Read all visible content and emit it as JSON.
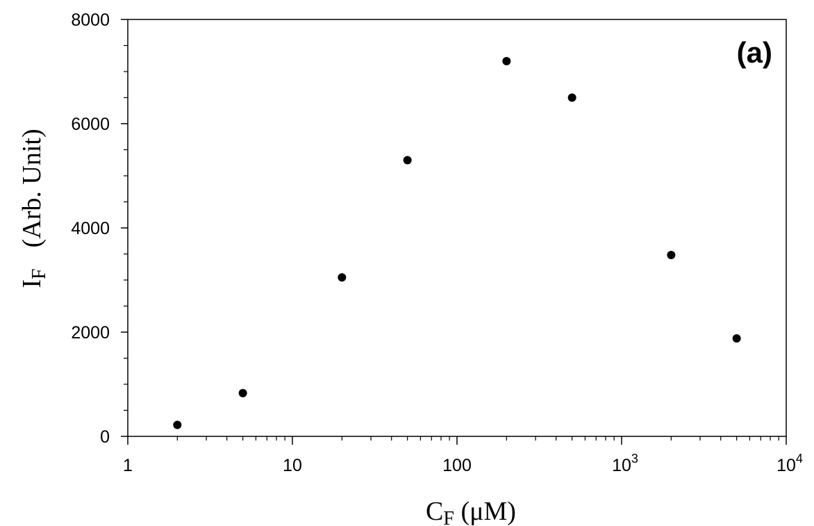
{
  "chart_data": {
    "type": "scatter",
    "panel_label": "(a)",
    "xlabel": {
      "main": "C",
      "sub": "F",
      "rest": " (μM)"
    },
    "ylabel": {
      "main": "I",
      "sub": "F",
      "rest": "(Arb. Unit)"
    },
    "x_scale": "log",
    "xlim": [
      1,
      10000
    ],
    "ylim": [
      0,
      8000
    ],
    "x_ticks": [
      {
        "value": 1,
        "label": "1",
        "exp": ""
      },
      {
        "value": 10,
        "label": "10",
        "exp": ""
      },
      {
        "value": 100,
        "label": "100",
        "exp": ""
      },
      {
        "value": 1000,
        "label": "10",
        "exp": "3"
      },
      {
        "value": 10000,
        "label": "10",
        "exp": "4"
      }
    ],
    "y_ticks": [
      {
        "value": 0,
        "label": "0"
      },
      {
        "value": 2000,
        "label": "2000"
      },
      {
        "value": 4000,
        "label": "4000"
      },
      {
        "value": 6000,
        "label": "6000"
      },
      {
        "value": 8000,
        "label": "8000"
      }
    ],
    "y_minor_step": 500,
    "grid": false,
    "points": [
      {
        "x": 2,
        "y": 220
      },
      {
        "x": 5,
        "y": 830
      },
      {
        "x": 20,
        "y": 3050
      },
      {
        "x": 50,
        "y": 5300
      },
      {
        "x": 200,
        "y": 7200
      },
      {
        "x": 500,
        "y": 6500
      },
      {
        "x": 2000,
        "y": 3480
      },
      {
        "x": 5000,
        "y": 1880
      }
    ],
    "marker_color": "#000000"
  }
}
